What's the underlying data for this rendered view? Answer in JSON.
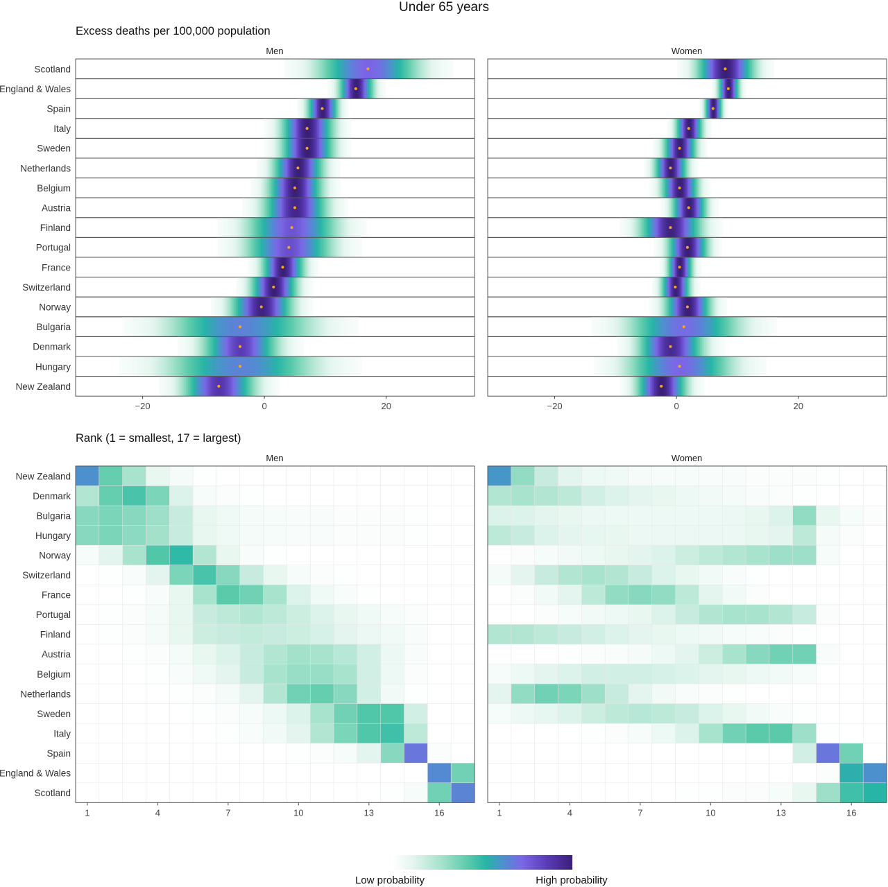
{
  "title": "Under 65 years",
  "top_panel_title": "Excess deaths per 100,000 population",
  "bottom_panel_title": "Rank (1 = smallest, 17 = largest)",
  "legend": {
    "low_label": "Low probability",
    "high_label": "High probability"
  },
  "colors": {
    "ramp": [
      "#ffffff",
      "#e3f5ee",
      "#a3e1cb",
      "#5ccbab",
      "#27b5a6",
      "#4e8fcf",
      "#7b67e6",
      "#5a3bb6",
      "#3a1f78"
    ],
    "point": "#f5a623",
    "frame": "#555555",
    "grid": "#e6e6e6"
  },
  "chart_data": [
    {
      "type": "heatmap",
      "title": "Excess deaths per 100,000 population",
      "facets": [
        "Men",
        "Women"
      ],
      "xlim": [
        -31,
        34.5
      ],
      "x_ticks": [
        -20,
        0,
        20
      ],
      "grid": false,
      "legend_position": "bottom",
      "countries": [
        "Scotland",
        "England & Wales",
        "Spain",
        "Italy",
        "Sweden",
        "Netherlands",
        "Belgium",
        "Austria",
        "Finland",
        "Portugal",
        "France",
        "Switzerland",
        "Norway",
        "Bulgaria",
        "Denmark",
        "Hungary",
        "New Zealand"
      ],
      "series": [
        {
          "name": "Men",
          "posterior_mean": [
            17,
            15,
            9.5,
            7,
            7,
            5.5,
            5,
            5,
            4.5,
            4,
            3,
            1.5,
            -0.5,
            -4,
            -4,
            -4,
            -7.5
          ],
          "spread": [
            5.5,
            1.8,
            1.6,
            2.7,
            2.7,
            2.6,
            2.8,
            3.3,
            4.8,
            4.6,
            2.2,
            2.4,
            3.2,
            7.8,
            4.0,
            8.0,
            3.8
          ]
        },
        {
          "name": "Women",
          "posterior_mean": [
            8,
            8.5,
            6,
            2,
            0.5,
            -1,
            0.5,
            2,
            -1,
            1.8,
            0.5,
            -0.2,
            1.8,
            1.2,
            -1,
            0.5,
            -2.5
          ],
          "spread": [
            3.0,
            1.1,
            0.9,
            1.4,
            1.7,
            1.7,
            1.9,
            1.8,
            3.2,
            2.1,
            1.3,
            1.5,
            2.4,
            6.0,
            3.4,
            5.6,
            2.6
          ]
        }
      ]
    },
    {
      "type": "heatmap",
      "title": "Rank (1 = smallest, 17 = largest)",
      "facets": [
        "Men",
        "Women"
      ],
      "x": [
        1,
        2,
        3,
        4,
        5,
        6,
        7,
        8,
        9,
        10,
        11,
        12,
        13,
        14,
        15,
        16,
        17
      ],
      "x_ticks": [
        1,
        4,
        7,
        10,
        13,
        16
      ],
      "grid": true,
      "legend_position": "bottom",
      "countries": [
        "New Zealand",
        "Denmark",
        "Bulgaria",
        "Hungary",
        "Norway",
        "Switzerland",
        "France",
        "Portugal",
        "Finland",
        "Austria",
        "Belgium",
        "Netherlands",
        "Sweden",
        "Italy",
        "Spain",
        "England & Wales",
        "Scotland"
      ],
      "series": [
        {
          "name": "Men",
          "probability": [
            [
              0.62,
              0.36,
              0.24,
              0.1,
              0.05,
              0.01,
              0,
              0,
              0,
              0,
              0,
              0,
              0,
              0,
              0,
              0,
              0
            ],
            [
              0.22,
              0.36,
              0.42,
              0.32,
              0.14,
              0.04,
              0.02,
              0.01,
              0,
              0,
              0,
              0,
              0,
              0,
              0,
              0,
              0
            ],
            [
              0.3,
              0.32,
              0.3,
              0.26,
              0.18,
              0.1,
              0.07,
              0.05,
              0.04,
              0.03,
              0.03,
              0.02,
              0.02,
              0.02,
              0.01,
              0,
              0
            ],
            [
              0.3,
              0.32,
              0.29,
              0.25,
              0.18,
              0.1,
              0.07,
              0.05,
              0.04,
              0.03,
              0.03,
              0.02,
              0.02,
              0.02,
              0.01,
              0,
              0
            ],
            [
              0.04,
              0.12,
              0.24,
              0.4,
              0.48,
              0.22,
              0.1,
              0.03,
              0.01,
              0,
              0,
              0,
              0,
              0,
              0,
              0,
              0
            ],
            [
              0,
              0.01,
              0.03,
              0.12,
              0.32,
              0.42,
              0.3,
              0.18,
              0.1,
              0.04,
              0.02,
              0.01,
              0,
              0,
              0,
              0,
              0
            ],
            [
              0,
              0,
              0.01,
              0.03,
              0.1,
              0.24,
              0.38,
              0.34,
              0.24,
              0.14,
              0.07,
              0.03,
              0.01,
              0,
              0,
              0,
              0
            ],
            [
              0,
              0.01,
              0.02,
              0.05,
              0.1,
              0.18,
              0.2,
              0.22,
              0.2,
              0.17,
              0.14,
              0.1,
              0.07,
              0.04,
              0.02,
              0,
              0
            ],
            [
              0,
              0.01,
              0.02,
              0.05,
              0.1,
              0.17,
              0.18,
              0.19,
              0.18,
              0.17,
              0.15,
              0.12,
              0.09,
              0.06,
              0.03,
              0,
              0
            ],
            [
              0,
              0,
              0.01,
              0.02,
              0.05,
              0.1,
              0.14,
              0.18,
              0.22,
              0.25,
              0.24,
              0.21,
              0.16,
              0.09,
              0.03,
              0,
              0
            ],
            [
              0,
              0,
              0,
              0.01,
              0.03,
              0.07,
              0.12,
              0.18,
              0.24,
              0.27,
              0.27,
              0.24,
              0.16,
              0.08,
              0.02,
              0,
              0
            ],
            [
              0,
              0,
              0,
              0,
              0.01,
              0.02,
              0.05,
              0.12,
              0.22,
              0.34,
              0.36,
              0.3,
              0.16,
              0.06,
              0.01,
              0,
              0
            ],
            [
              0,
              0,
              0,
              0,
              0,
              0.01,
              0.02,
              0.04,
              0.08,
              0.14,
              0.24,
              0.34,
              0.4,
              0.4,
              0.16,
              0,
              0
            ],
            [
              0,
              0,
              0,
              0,
              0,
              0,
              0.01,
              0.03,
              0.06,
              0.12,
              0.22,
              0.32,
              0.4,
              0.44,
              0.2,
              0,
              0
            ],
            [
              0,
              0,
              0,
              0,
              0,
              0,
              0,
              0,
              0,
              0.01,
              0.02,
              0.04,
              0.12,
              0.3,
              0.7,
              0.02,
              0
            ],
            [
              0,
              0,
              0,
              0,
              0,
              0,
              0,
              0,
              0,
              0,
              0,
              0,
              0,
              0,
              0,
              0.64,
              0.34
            ],
            [
              0,
              0,
              0,
              0,
              0,
              0,
              0,
              0,
              0,
              0,
              0,
              0,
              0,
              0.01,
              0.04,
              0.34,
              0.66
            ]
          ]
        },
        {
          "name": "Women",
          "probability": [
            [
              0.6,
              0.28,
              0.18,
              0.12,
              0.08,
              0.07,
              0.05,
              0.04,
              0.04,
              0.03,
              0.03,
              0.02,
              0.02,
              0.02,
              0.01,
              0,
              0
            ],
            [
              0.22,
              0.24,
              0.22,
              0.2,
              0.16,
              0.14,
              0.12,
              0.1,
              0.08,
              0.06,
              0.05,
              0.03,
              0.02,
              0.01,
              0,
              0,
              0
            ],
            [
              0.14,
              0.14,
              0.12,
              0.1,
              0.09,
              0.08,
              0.08,
              0.08,
              0.08,
              0.08,
              0.09,
              0.1,
              0.14,
              0.28,
              0.1,
              0.04,
              0.02
            ],
            [
              0.2,
              0.18,
              0.14,
              0.12,
              0.11,
              0.1,
              0.09,
              0.09,
              0.09,
              0.09,
              0.09,
              0.1,
              0.12,
              0.2,
              0.05,
              0.02,
              0
            ],
            [
              0,
              0.02,
              0.04,
              0.06,
              0.08,
              0.1,
              0.12,
              0.14,
              0.17,
              0.2,
              0.22,
              0.24,
              0.26,
              0.26,
              0.04,
              0,
              0
            ],
            [
              0.05,
              0.12,
              0.18,
              0.22,
              0.24,
              0.22,
              0.18,
              0.14,
              0.1,
              0.06,
              0.03,
              0.01,
              0,
              0,
              0,
              0,
              0
            ],
            [
              0,
              0.02,
              0.06,
              0.12,
              0.2,
              0.28,
              0.3,
              0.28,
              0.2,
              0.12,
              0.06,
              0.02,
              0,
              0,
              0,
              0,
              0
            ],
            [
              0,
              0,
              0.02,
              0.04,
              0.06,
              0.08,
              0.1,
              0.14,
              0.18,
              0.22,
              0.24,
              0.24,
              0.22,
              0.18,
              0.02,
              0,
              0
            ],
            [
              0.22,
              0.22,
              0.2,
              0.18,
              0.16,
              0.14,
              0.12,
              0.1,
              0.08,
              0.06,
              0.04,
              0.03,
              0.02,
              0.01,
              0,
              0,
              0
            ],
            [
              0,
              0,
              0,
              0.01,
              0.02,
              0.03,
              0.05,
              0.08,
              0.12,
              0.17,
              0.24,
              0.3,
              0.34,
              0.34,
              0.03,
              0,
              0
            ],
            [
              0.04,
              0.08,
              0.12,
              0.14,
              0.16,
              0.16,
              0.16,
              0.15,
              0.14,
              0.12,
              0.1,
              0.08,
              0.06,
              0.04,
              0,
              0,
              0
            ],
            [
              0.12,
              0.28,
              0.34,
              0.32,
              0.26,
              0.18,
              0.12,
              0.06,
              0.03,
              0.02,
              0.01,
              0,
              0,
              0,
              0,
              0,
              0
            ],
            [
              0.04,
              0.08,
              0.11,
              0.14,
              0.17,
              0.2,
              0.21,
              0.2,
              0.18,
              0.14,
              0.1,
              0.06,
              0.03,
              0.01,
              0,
              0,
              0
            ],
            [
              0,
              0,
              0,
              0,
              0.01,
              0.02,
              0.04,
              0.08,
              0.14,
              0.24,
              0.34,
              0.38,
              0.38,
              0.26,
              0.01,
              0,
              0
            ],
            [
              0,
              0,
              0,
              0,
              0,
              0,
              0,
              0,
              0,
              0,
              0,
              0,
              0,
              0.16,
              0.7,
              0.34,
              0
            ],
            [
              0,
              0,
              0,
              0,
              0,
              0,
              0,
              0,
              0,
              0,
              0,
              0,
              0,
              0,
              0.02,
              0.52,
              0.62
            ],
            [
              0,
              0,
              0,
              0,
              0,
              0,
              0,
              0,
              0.01,
              0.01,
              0.02,
              0.02,
              0.04,
              0.1,
              0.26,
              0.44,
              0.5
            ]
          ]
        }
      ]
    }
  ]
}
